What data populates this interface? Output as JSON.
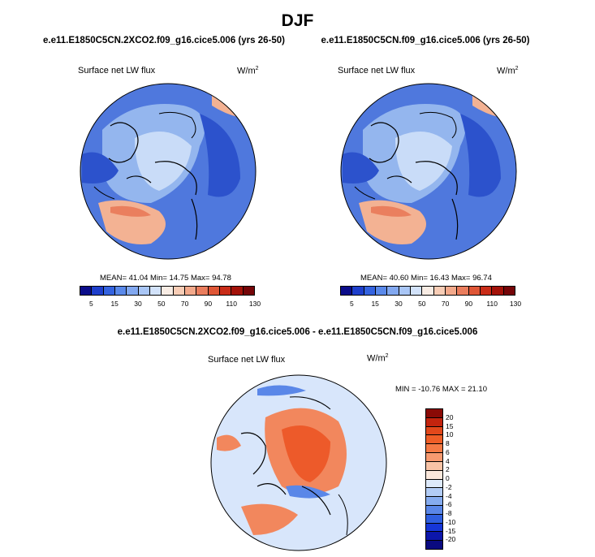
{
  "title": "DJF",
  "panels": [
    {
      "case": "e.e11.E1850C5CN.2XCO2.f09_g16.cice5.006 (yrs 26-50)",
      "variable": "Surface net LW flux",
      "units_base": "W/m",
      "units_exp": "2",
      "stats": "MEAN= 41.04  Min= 14.75  Max= 94.78"
    },
    {
      "case": "e.e11.E1850C5CN.f09_g16.cice5.006 (yrs 26-50)",
      "variable": "Surface net LW flux",
      "units_base": "W/m",
      "units_exp": "2",
      "stats": "MEAN= 40.60  Min= 16.43  Max= 96.74"
    }
  ],
  "diff": {
    "case": "e.e11.E1850C5CN.2XCO2.f09_g16.cice5.006 - e.e11.E1850C5CN.f09_g16.cice5.006",
    "variable": "Surface net LW flux",
    "units_base": "W/m",
    "units_exp": "2",
    "stats": "MIN = -10.76 MAX =  21.10"
  },
  "colorbar_abs": {
    "labels": [
      "5",
      "15",
      "30",
      "50",
      "70",
      "90",
      "110",
      "130"
    ],
    "colors": [
      "#0b0d8a",
      "#1e3fcc",
      "#3463e0",
      "#5a89ea",
      "#82a8f0",
      "#a9c6f6",
      "#d2e2fa",
      "#f8ece4",
      "#f8cdb6",
      "#f3a98b",
      "#ea7d5d",
      "#df5636",
      "#c92c18",
      "#a31209",
      "#750508"
    ]
  },
  "colorbar_diff": {
    "labels": [
      "20",
      "15",
      "10",
      "8",
      "6",
      "4",
      "2",
      "0",
      "-2",
      "-4",
      "-6",
      "-8",
      "-10",
      "-15",
      "-20"
    ],
    "colors": [
      "#8a0a06",
      "#c3240e",
      "#e2481b",
      "#ef5e27",
      "#f57a45",
      "#f79a70",
      "#f8c3a6",
      "#fbe8dc",
      "#dde9fa",
      "#b2ccf5",
      "#86acef",
      "#5a87e8",
      "#2f5fe0",
      "#1636d8",
      "#0c16ab",
      "#0a0a80"
    ]
  },
  "map_colors": {
    "ocean_pos": "#4f78dd",
    "ice_blue": "#94b6ee",
    "pale_blue": "#c9dcf8",
    "deep_blue": "#2c52cc",
    "warm": "#f3b293",
    "warm_strong": "#ea7f5e",
    "diff_ocean": "#d8e6fb",
    "diff_core": "#ed5a2a",
    "diff_mid": "#f2875d",
    "diff_neg": "#5a87e8"
  }
}
